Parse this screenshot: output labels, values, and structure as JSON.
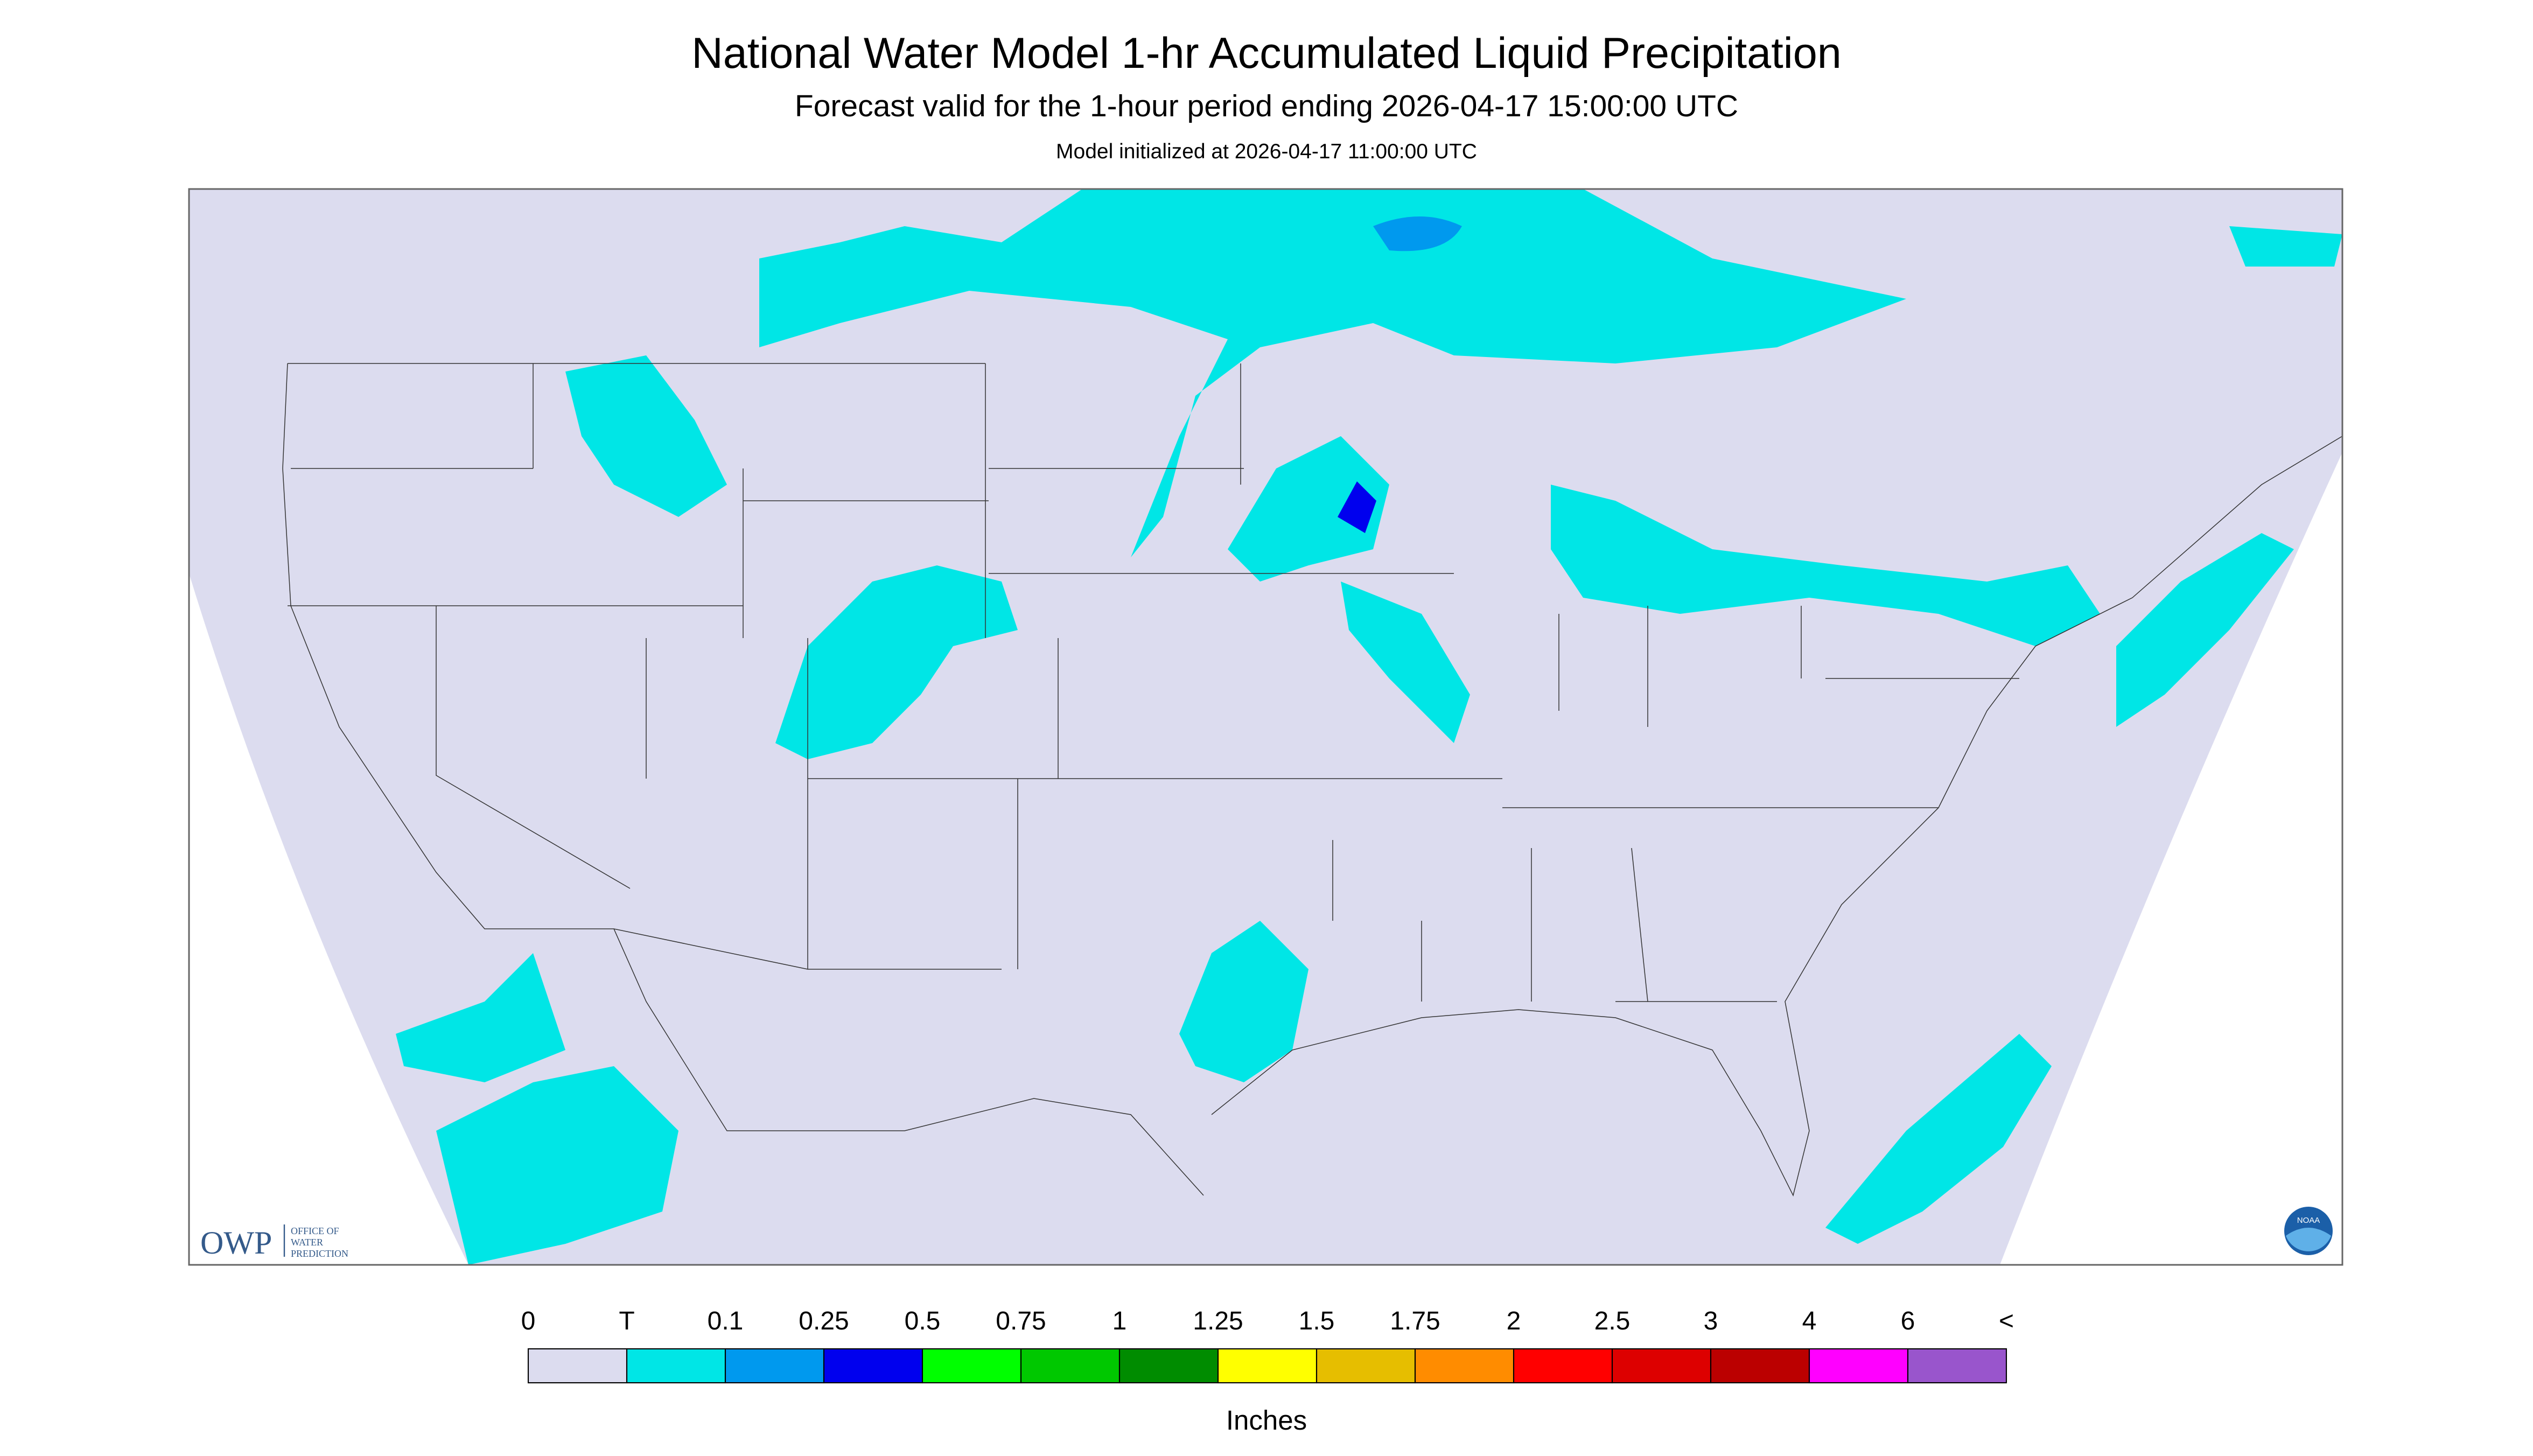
{
  "header": {
    "title": "National Water Model 1-hr Accumulated Liquid Precipitation",
    "subtitle": "Forecast valid for the 1-hour period ending 2026-04-17 15:00:00 UTC",
    "init": "Model initialized at 2026-04-17 11:00:00 UTC"
  },
  "logos": {
    "owp": "OWP",
    "owp_line1": "OFFICE OF",
    "owp_line2": "WATER",
    "owp_line3": "PREDICTION",
    "noaa": "NOAA"
  },
  "colorbar": {
    "labels": [
      "0",
      "T",
      "0.1",
      "0.25",
      "0.5",
      "0.75",
      "1",
      "1.25",
      "1.5",
      "1.75",
      "2",
      "2.5",
      "3",
      "4",
      "6",
      "<"
    ],
    "colors": [
      "#dcdcef",
      "#00e6e6",
      "#0099ee",
      "#0000ee",
      "#00ff00",
      "#00c800",
      "#008c00",
      "#ffff00",
      "#e6be00",
      "#ff8c00",
      "#ff0000",
      "#dd0000",
      "#bb0000",
      "#ff00ff",
      "#9955cc"
    ],
    "units": "Inches"
  }
}
